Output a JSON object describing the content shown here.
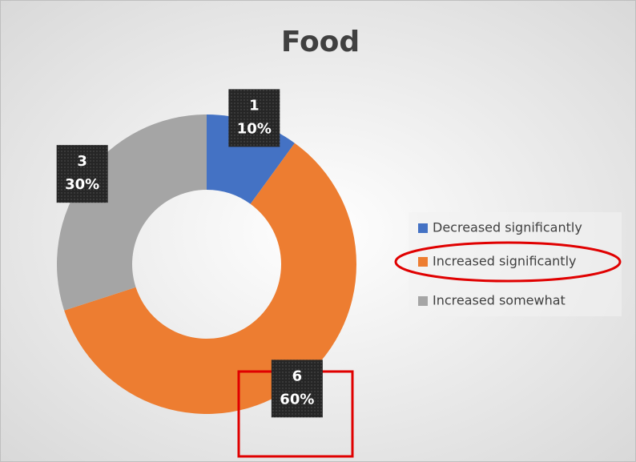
{
  "chart_data": {
    "type": "donut",
    "title": "Food",
    "categories": [
      "Decreased significantly",
      "Increased significantly",
      "Increased somewhat"
    ],
    "values": [
      1,
      6,
      3
    ],
    "percent_labels": [
      "10%",
      "60%",
      "30%"
    ],
    "colors": [
      "#4472c4",
      "#ed7d31",
      "#a5a5a5"
    ],
    "legend": "right"
  }
}
